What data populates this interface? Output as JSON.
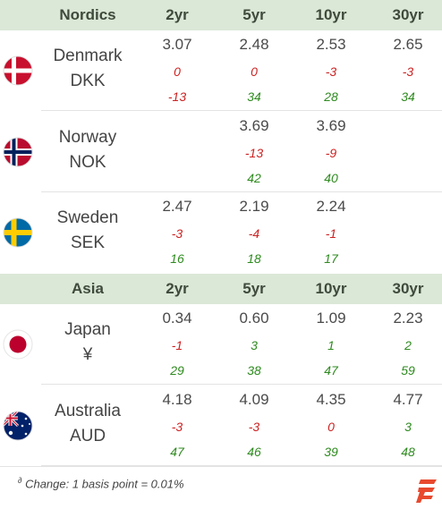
{
  "columns": [
    "2yr",
    "5yr",
    "10yr",
    "30yr"
  ],
  "sections": [
    {
      "region": "Nordics",
      "rows": [
        {
          "country": "Denmark",
          "code": "DKK",
          "flag": "denmark-flag-icon",
          "cells": [
            {
              "yield": "3.07",
              "chg1": "0",
              "chg2": "-13"
            },
            {
              "yield": "2.48",
              "chg1": "0",
              "chg2": "34"
            },
            {
              "yield": "2.53",
              "chg1": "-3",
              "chg2": "28"
            },
            {
              "yield": "2.65",
              "chg1": "-3",
              "chg2": "34"
            }
          ]
        },
        {
          "country": "Norway",
          "code": "NOK",
          "flag": "norway-flag-icon",
          "cells": [
            {
              "yield": "",
              "chg1": "",
              "chg2": ""
            },
            {
              "yield": "3.69",
              "chg1": "-13",
              "chg2": "42"
            },
            {
              "yield": "3.69",
              "chg1": "-9",
              "chg2": "40"
            },
            {
              "yield": "",
              "chg1": "",
              "chg2": ""
            }
          ]
        },
        {
          "country": "Sweden",
          "code": "SEK",
          "flag": "sweden-flag-icon",
          "cells": [
            {
              "yield": "2.47",
              "chg1": "-3",
              "chg2": "16"
            },
            {
              "yield": "2.19",
              "chg1": "-4",
              "chg2": "18"
            },
            {
              "yield": "2.24",
              "chg1": "-1",
              "chg2": "17"
            },
            {
              "yield": "",
              "chg1": "",
              "chg2": ""
            }
          ]
        }
      ]
    },
    {
      "region": "Asia",
      "rows": [
        {
          "country": "Japan",
          "code": "¥",
          "flag": "japan-flag-icon",
          "cells": [
            {
              "yield": "0.34",
              "chg1": "-1",
              "chg2": "29"
            },
            {
              "yield": "0.60",
              "chg1": "3",
              "chg2": "38"
            },
            {
              "yield": "1.09",
              "chg1": "1",
              "chg2": "47"
            },
            {
              "yield": "2.23",
              "chg1": "2",
              "chg2": "59"
            }
          ]
        },
        {
          "country": "Australia",
          "code": "AUD",
          "flag": "australia-flag-icon",
          "cells": [
            {
              "yield": "4.18",
              "chg1": "-3",
              "chg2": "47"
            },
            {
              "yield": "4.09",
              "chg1": "-3",
              "chg2": "46"
            },
            {
              "yield": "4.35",
              "chg1": "0",
              "chg2": "39"
            },
            {
              "yield": "4.77",
              "chg1": "3",
              "chg2": "48"
            }
          ]
        }
      ]
    }
  ],
  "footnote": {
    "marker": "∂",
    "text": "Change: 1 basis point = 0.01%"
  },
  "colors": {
    "header_bg": "#dbe7d7",
    "negative": "#cc2222",
    "positive": "#2e8a1f",
    "logo": "#e8492f"
  }
}
